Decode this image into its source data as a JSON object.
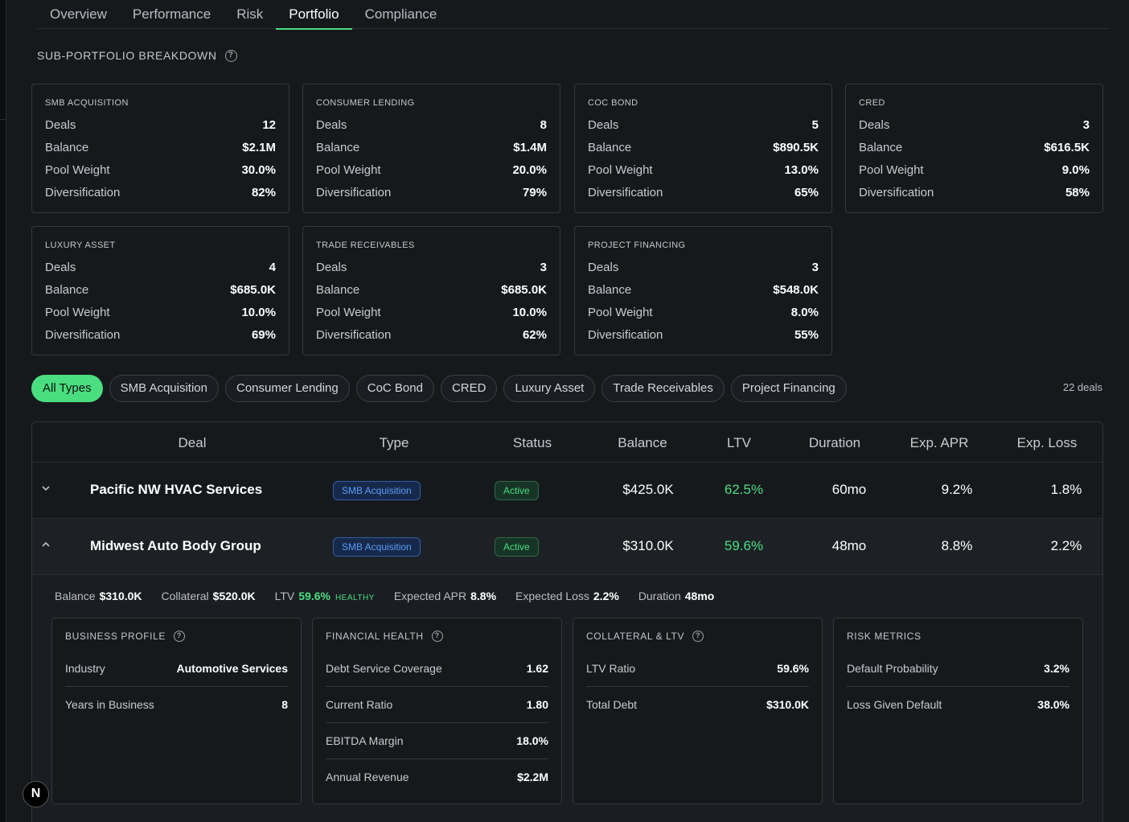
{
  "tabs": [
    {
      "label": "Overview"
    },
    {
      "label": "Performance"
    },
    {
      "label": "Risk"
    },
    {
      "label": "Portfolio"
    },
    {
      "label": "Compliance"
    }
  ],
  "section": {
    "title": "SUB-PORTFOLIO BREAKDOWN"
  },
  "row_labels": {
    "deals": "Deals",
    "balance": "Balance",
    "pool_weight": "Pool Weight",
    "diversification": "Diversification"
  },
  "cards": [
    {
      "title": "SMB ACQUISITION",
      "deals": "12",
      "balance": "$2.1M",
      "pool_weight": "30.0%",
      "diversification": "82%"
    },
    {
      "title": "CONSUMER LENDING",
      "deals": "8",
      "balance": "$1.4M",
      "pool_weight": "20.0%",
      "diversification": "79%"
    },
    {
      "title": "COC BOND",
      "deals": "5",
      "balance": "$890.5K",
      "pool_weight": "13.0%",
      "diversification": "65%"
    },
    {
      "title": "CRED",
      "deals": "3",
      "balance": "$616.5K",
      "pool_weight": "9.0%",
      "diversification": "58%"
    },
    {
      "title": "LUXURY ASSET",
      "deals": "4",
      "balance": "$685.0K",
      "pool_weight": "10.0%",
      "diversification": "69%"
    },
    {
      "title": "TRADE RECEIVABLES",
      "deals": "3",
      "balance": "$685.0K",
      "pool_weight": "10.0%",
      "diversification": "62%"
    },
    {
      "title": "PROJECT FINANCING",
      "deals": "3",
      "balance": "$548.0K",
      "pool_weight": "8.0%",
      "diversification": "55%"
    }
  ],
  "filters": [
    {
      "label": "All Types"
    },
    {
      "label": "SMB Acquisition"
    },
    {
      "label": "Consumer Lending"
    },
    {
      "label": "CoC Bond"
    },
    {
      "label": "CRED"
    },
    {
      "label": "Luxury Asset"
    },
    {
      "label": "Trade Receivables"
    },
    {
      "label": "Project Financing"
    }
  ],
  "deal_count": "22 deals",
  "table": {
    "headers": {
      "deal": "Deal",
      "type": "Type",
      "status": "Status",
      "balance": "Balance",
      "ltv": "LTV",
      "duration": "Duration",
      "apr": "Exp. APR",
      "loss": "Exp. Loss"
    },
    "rows": [
      {
        "deal": "Pacific NW HVAC Services",
        "type": "SMB Acquisition",
        "status": "Active",
        "balance": "$425.0K",
        "ltv": "62.5%",
        "duration": "60mo",
        "apr": "9.2%",
        "loss": "1.8%"
      },
      {
        "deal": "Midwest Auto Body Group",
        "type": "SMB Acquisition",
        "status": "Active",
        "balance": "$310.0K",
        "ltv": "59.6%",
        "duration": "48mo",
        "apr": "8.8%",
        "loss": "2.2%"
      }
    ]
  },
  "details": {
    "summary": {
      "balance_label": "Balance",
      "balance": "$310.0K",
      "collateral_label": "Collateral",
      "collateral": "$520.0K",
      "ltv_label": "LTV",
      "ltv": "59.6%",
      "ltv_status": "HEALTHY",
      "apr_label": "Expected APR",
      "apr": "8.8%",
      "loss_label": "Expected Loss",
      "loss": "2.2%",
      "duration_label": "Duration",
      "duration": "48mo"
    },
    "business": {
      "title": "BUSINESS PROFILE",
      "industry_label": "Industry",
      "industry": "Automotive Services",
      "years_label": "Years in Business",
      "years": "8"
    },
    "financial": {
      "title": "FINANCIAL HEALTH",
      "dscr_label": "Debt Service Coverage",
      "dscr": "1.62",
      "current_label": "Current Ratio",
      "current": "1.80",
      "ebitda_label": "EBITDA Margin",
      "ebitda": "18.0%",
      "revenue_label": "Annual Revenue",
      "revenue": "$2.2M"
    },
    "collateral": {
      "title": "COLLATERAL & LTV",
      "ltv_label": "LTV Ratio",
      "ltv": "59.6%",
      "debt_label": "Total Debt",
      "debt": "$310.0K"
    },
    "risk": {
      "title": "RISK METRICS",
      "pd_label": "Default Probability",
      "pd": "3.2%",
      "lgd_label": "Loss Given Default",
      "lgd": "38.0%"
    }
  },
  "badge": {
    "letter": "N"
  },
  "colors": {
    "accent": "#4ade80",
    "type_badge": "#5b9cf5",
    "background": "#16191c"
  }
}
